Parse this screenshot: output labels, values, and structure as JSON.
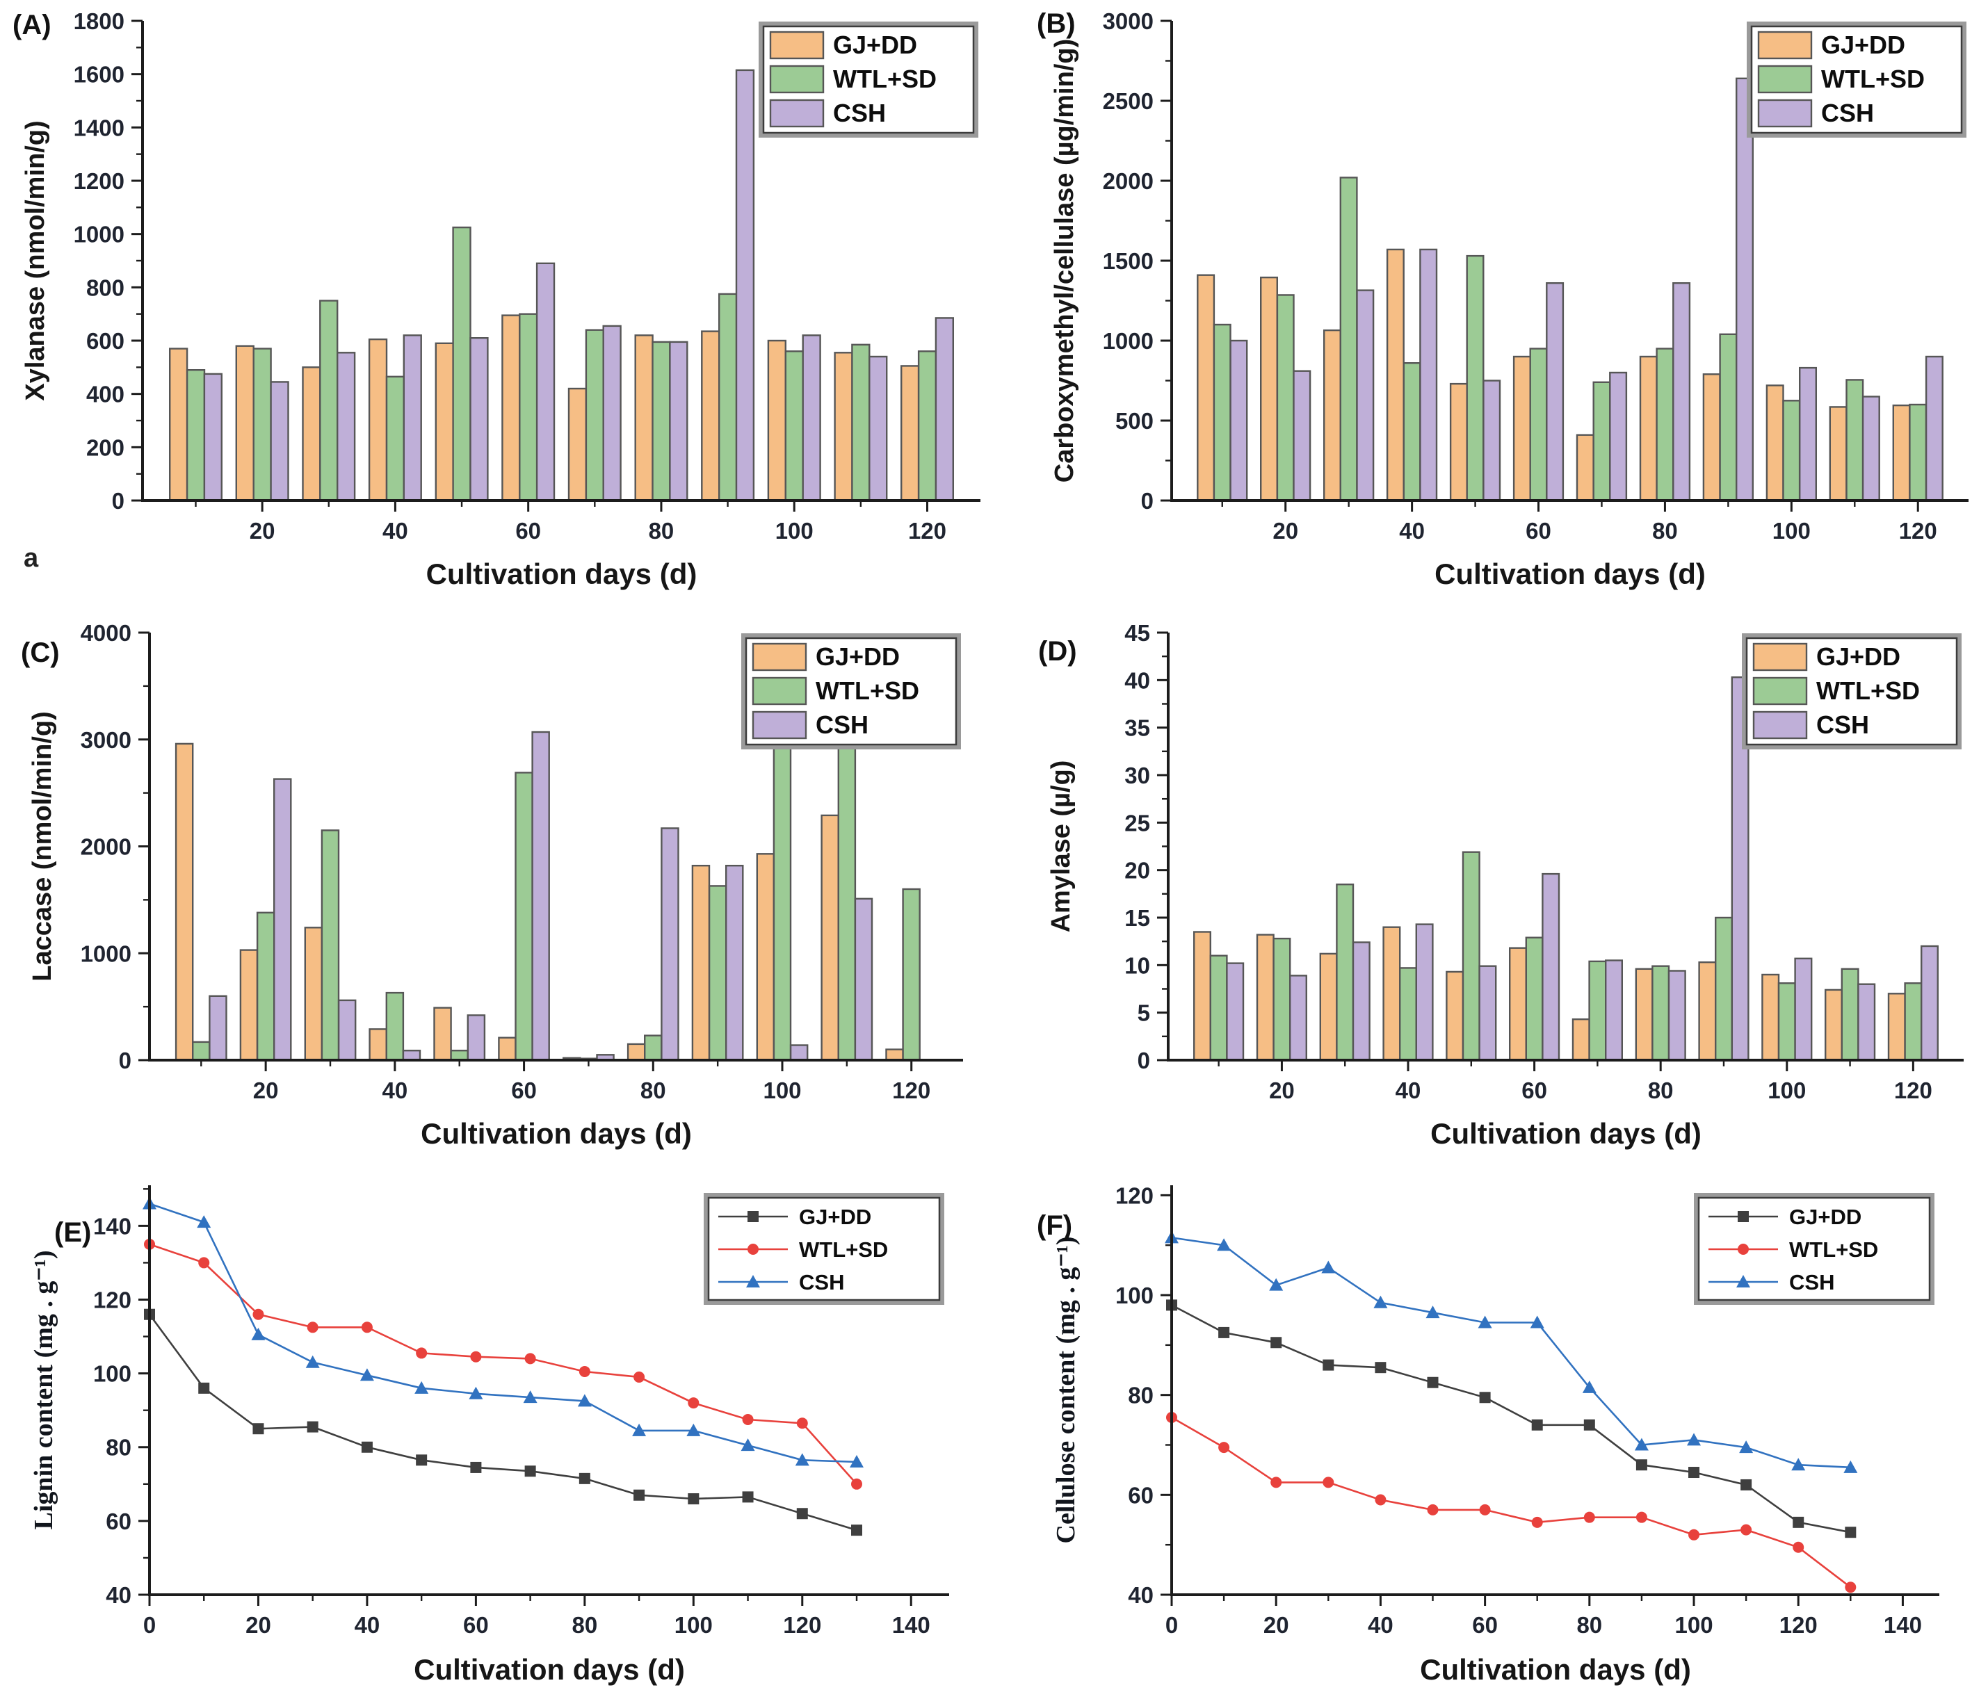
{
  "figure": {
    "note_a": "a",
    "x_axis_title": "Cultivation days (d)"
  },
  "colors": {
    "axis": "#1c1c1c",
    "bar_border": "#565656",
    "legend_border_outer": "#9a9a9a",
    "legend_border_inner": "#3c3c3c",
    "bar_gj_dd": "#F6BE85",
    "bar_wtl_sd": "#9CCB95",
    "bar_csh": "#BFAFD8",
    "line_gj_dd": "#3f3f3f",
    "line_wtl_sd": "#e8413c",
    "line_csh": "#3172c0"
  },
  "chart_data": [
    {
      "panel_label": "(A)",
      "type": "bar",
      "title": "",
      "ylabel": "Xylanase (nmol/min/g)",
      "xlabel": "Cultivation days (d)",
      "ylim": [
        0,
        1800
      ],
      "ytick": 200,
      "xlim": [
        2,
        128
      ],
      "xticks_labeled": [
        20,
        40,
        60,
        80,
        100,
        120
      ],
      "xticks_minor": [
        10,
        30,
        50,
        70,
        90,
        110
      ],
      "grid": "off",
      "legend_position": "top-right",
      "categories": [
        10,
        20,
        30,
        40,
        50,
        60,
        70,
        80,
        90,
        100,
        110,
        120
      ],
      "series": [
        {
          "name": "GJ+DD",
          "color": "#F6BE85",
          "values": [
            570,
            580,
            500,
            605,
            590,
            695,
            420,
            620,
            635,
            600,
            555,
            505
          ]
        },
        {
          "name": "WTL+SD",
          "color": "#9CCB95",
          "values": [
            490,
            570,
            750,
            465,
            1025,
            700,
            640,
            595,
            775,
            560,
            585,
            560
          ]
        },
        {
          "name": "CSH",
          "color": "#BFAFD8",
          "values": [
            475,
            445,
            555,
            620,
            610,
            890,
            655,
            595,
            1615,
            620,
            540,
            685
          ]
        }
      ]
    },
    {
      "panel_label": "(B)",
      "type": "bar",
      "title": "",
      "ylabel": "Carboxymethyl/cellulase (µg/min/g)",
      "xlabel": "Cultivation days (d)",
      "ylim": [
        0,
        3000
      ],
      "ytick": 500,
      "xlim": [
        2,
        128
      ],
      "xticks_labeled": [
        20,
        40,
        60,
        80,
        100,
        120
      ],
      "xticks_minor": [
        10,
        30,
        50,
        70,
        90,
        110
      ],
      "grid": "off",
      "legend_position": "top-right",
      "categories": [
        10,
        20,
        30,
        40,
        50,
        60,
        70,
        80,
        90,
        100,
        110,
        120
      ],
      "series": [
        {
          "name": "GJ+DD",
          "color": "#F6BE85",
          "values": [
            1410,
            1395,
            1065,
            1570,
            730,
            900,
            410,
            900,
            790,
            720,
            585,
            595
          ]
        },
        {
          "name": "WTL+SD",
          "color": "#9CCB95",
          "values": [
            1100,
            1285,
            2020,
            860,
            1530,
            950,
            740,
            950,
            1040,
            625,
            755,
            600
          ]
        },
        {
          "name": "CSH",
          "color": "#BFAFD8",
          "values": [
            1000,
            810,
            1315,
            1570,
            750,
            1360,
            800,
            1360,
            2640,
            830,
            650,
            900
          ]
        }
      ]
    },
    {
      "panel_label": "(C)",
      "type": "bar",
      "title": "",
      "ylabel": "Laccase (nmol/min/g)",
      "xlabel": "Cultivation days (d)",
      "ylim": [
        0,
        4000
      ],
      "ytick": 1000,
      "xlim": [
        2,
        128
      ],
      "xticks_labeled": [
        20,
        40,
        60,
        80,
        100,
        120
      ],
      "xticks_minor": [
        10,
        30,
        50,
        70,
        90,
        110
      ],
      "grid": "off",
      "legend_position": "top-right",
      "categories": [
        10,
        20,
        30,
        40,
        50,
        60,
        70,
        80,
        90,
        100,
        110,
        120
      ],
      "series": [
        {
          "name": "GJ+DD",
          "color": "#F6BE85",
          "values": [
            2960,
            1030,
            1240,
            290,
            490,
            210,
            20,
            150,
            1820,
            1930,
            2290,
            100
          ]
        },
        {
          "name": "WTL+SD",
          "color": "#9CCB95",
          "values": [
            170,
            1380,
            2150,
            630,
            90,
            2690,
            15,
            230,
            1630,
            3560,
            3150,
            1600
          ]
        },
        {
          "name": "CSH",
          "color": "#BFAFD8",
          "values": [
            600,
            2630,
            560,
            90,
            420,
            3070,
            50,
            2170,
            1820,
            140,
            1510,
            0
          ]
        }
      ]
    },
    {
      "panel_label": "(D)",
      "type": "bar",
      "title": "",
      "ylabel": "Amylase (µ/g)",
      "xlabel": "Cultivation days (d)",
      "ylim": [
        0,
        45
      ],
      "ytick": 5,
      "xlim": [
        2,
        128
      ],
      "xticks_labeled": [
        20,
        40,
        60,
        80,
        100,
        120
      ],
      "xticks_minor": [
        10,
        30,
        50,
        70,
        90,
        110
      ],
      "grid": "off",
      "legend_position": "top-right",
      "categories": [
        10,
        20,
        30,
        40,
        50,
        60,
        70,
        80,
        90,
        100,
        110,
        120
      ],
      "series": [
        {
          "name": "GJ+DD",
          "color": "#F6BE85",
          "values": [
            13.5,
            13.2,
            11.2,
            14.0,
            9.3,
            11.8,
            4.3,
            9.6,
            10.3,
            9.0,
            7.4,
            7.0
          ]
        },
        {
          "name": "WTL+SD",
          "color": "#9CCB95",
          "values": [
            11.0,
            12.8,
            18.5,
            9.7,
            21.9,
            12.9,
            10.4,
            9.9,
            15.0,
            8.1,
            9.6,
            8.1
          ]
        },
        {
          "name": "CSH",
          "color": "#BFAFD8",
          "values": [
            10.2,
            8.9,
            12.4,
            14.3,
            9.9,
            19.6,
            10.5,
            9.4,
            40.3,
            10.7,
            8.0,
            12.0
          ]
        }
      ]
    },
    {
      "panel_label": "(E)",
      "type": "line",
      "title": "",
      "ylabel": "Lignin content (mg . g⁻¹)",
      "xlabel": "Cultivation days (d)",
      "ylim": [
        40,
        151
      ],
      "yticks_labeled": [
        40,
        60,
        80,
        100,
        120,
        140
      ],
      "ytick_minor_step": 10,
      "xlim": [
        0,
        147
      ],
      "xticks_labeled": [
        0,
        20,
        40,
        60,
        80,
        100,
        120,
        140
      ],
      "xticks_minor": [
        10,
        30,
        50,
        70,
        90,
        110,
        130
      ],
      "grid": "off",
      "legend_position": "top-right",
      "x": [
        0,
        10,
        20,
        30,
        40,
        50,
        60,
        70,
        80,
        90,
        100,
        110,
        120,
        130
      ],
      "series": [
        {
          "name": "GJ+DD",
          "color": "#3f3f3f",
          "marker": "square",
          "values": [
            116,
            96,
            85,
            85.5,
            80,
            76.5,
            74.5,
            73.5,
            71.5,
            67,
            66,
            66.5,
            62,
            57.5
          ]
        },
        {
          "name": "WTL+SD",
          "color": "#e8413c",
          "marker": "circle",
          "values": [
            135,
            130,
            116,
            112.5,
            112.5,
            105.5,
            104.5,
            104,
            100.5,
            99,
            92,
            87.5,
            86.5,
            70
          ]
        },
        {
          "name": "CSH",
          "color": "#3172c0",
          "marker": "triangle",
          "values": [
            146,
            141,
            110.5,
            103,
            99.5,
            96,
            94.5,
            93.5,
            92.5,
            84.5,
            84.5,
            80.5,
            76.5,
            76
          ]
        }
      ]
    },
    {
      "panel_label": "(F)",
      "type": "line",
      "title": "",
      "ylabel": "Cellulose content (mg . g⁻¹)",
      "xlabel": "Cultivation days (d)",
      "ylim": [
        40,
        122
      ],
      "yticks_labeled": [
        40,
        60,
        80,
        100,
        120
      ],
      "ytick_minor_step": 10,
      "xlim": [
        0,
        147
      ],
      "xticks_labeled": [
        0,
        20,
        40,
        60,
        80,
        100,
        120,
        140
      ],
      "xticks_minor": [
        10,
        30,
        50,
        70,
        90,
        110,
        130
      ],
      "grid": "off",
      "legend_position": "top-right",
      "x": [
        0,
        10,
        20,
        30,
        40,
        50,
        60,
        70,
        80,
        90,
        100,
        110,
        120,
        130
      ],
      "series": [
        {
          "name": "GJ+DD",
          "color": "#3f3f3f",
          "marker": "square",
          "values": [
            98,
            92.5,
            90.5,
            86,
            85.5,
            82.5,
            79.5,
            74,
            74,
            66,
            64.5,
            62,
            54.5,
            52.5
          ]
        },
        {
          "name": "WTL+SD",
          "color": "#e8413c",
          "marker": "circle",
          "values": [
            75.5,
            69.5,
            62.5,
            62.5,
            59,
            57,
            57,
            54.5,
            55.5,
            55.5,
            52,
            53,
            49.5,
            41.5
          ]
        },
        {
          "name": "CSH",
          "color": "#3172c0",
          "marker": "triangle",
          "values": [
            111.5,
            110,
            102,
            105.5,
            98.5,
            96.5,
            94.5,
            94.5,
            81.5,
            70,
            71,
            69.5,
            66,
            65.5
          ]
        }
      ]
    }
  ]
}
